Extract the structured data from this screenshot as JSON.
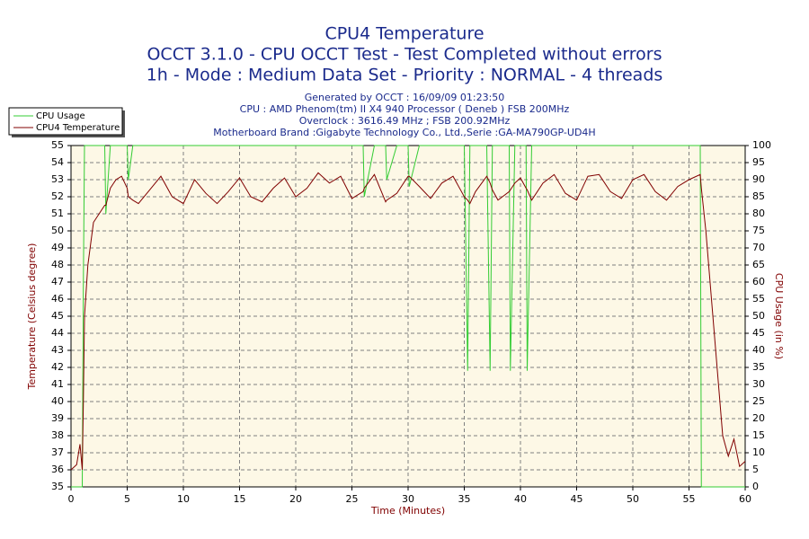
{
  "chart_data": {
    "type": "line",
    "title": "CPU4 Temperature",
    "subtitle": [
      "OCCT 3.1.0 - CPU OCCT Test - Test Completed without errors",
      "1h - Mode : Medium Data Set - Priority : NORMAL - 4 threads"
    ],
    "info": [
      "Generated by OCCT : 16/09/09 01:23:50",
      "CPU : AMD Phenom(tm) II X4 940 Processor ( Deneb ) FSB 200MHz",
      "Overclock : 3616.49 MHz ; FSB 200.92MHz",
      "Motherboard Brand :Gigabyte Technology Co., Ltd.,Serie :GA-MA790GP-UD4H"
    ],
    "x_label": "Time (Minutes)",
    "y_label": "Temperature (Celsius degree)",
    "y2_label": "CPU Usage (in %)",
    "x": [
      0,
      0.5,
      0.8,
      1,
      1.1,
      1.2,
      1.5,
      2,
      2.5,
      3,
      3.1,
      3.5,
      4,
      4.5,
      5,
      5.1,
      5.5,
      6,
      7,
      8,
      9,
      10,
      11,
      12,
      13,
      14,
      15,
      16,
      17,
      18,
      19,
      20,
      21,
      22,
      23,
      24,
      25,
      26,
      26.1,
      27,
      28,
      28.1,
      29,
      30,
      30.1,
      31,
      32,
      33,
      34,
      35,
      35.3,
      35.5,
      36,
      37,
      37.3,
      37.5,
      38,
      39,
      39.1,
      39.5,
      40,
      40.5,
      40.6,
      41,
      42,
      43,
      44,
      45,
      46,
      47,
      48,
      49,
      50,
      51,
      52,
      53,
      54,
      55,
      56,
      56.1,
      56.5,
      57,
      57.5,
      58,
      58.5,
      59,
      59.5,
      60
    ],
    "series": [
      {
        "name": "CPU Usage",
        "color": "#33cc33",
        "axis": "y2",
        "values": [
          0,
          0,
          0,
          0,
          60,
          100,
          100,
          100,
          100,
          100,
          80,
          100,
          100,
          100,
          100,
          90,
          100,
          100,
          100,
          100,
          100,
          100,
          100,
          100,
          100,
          100,
          100,
          100,
          100,
          100,
          100,
          100,
          100,
          100,
          100,
          100,
          100,
          100,
          85,
          100,
          100,
          90,
          100,
          100,
          88,
          100,
          100,
          100,
          100,
          100,
          34,
          100,
          100,
          100,
          34,
          100,
          100,
          100,
          34,
          100,
          100,
          100,
          34,
          100,
          100,
          100,
          100,
          100,
          100,
          100,
          100,
          100,
          100,
          100,
          100,
          100,
          100,
          100,
          100,
          0,
          0,
          0,
          0,
          0,
          0,
          0,
          0,
          0
        ]
      },
      {
        "name": "CPU4 Temperature",
        "color": "#800000",
        "values": [
          36,
          36.3,
          37.5,
          36,
          40,
          45,
          48,
          50.5,
          51,
          51.5,
          51.5,
          52.5,
          53,
          53.2,
          52.5,
          52,
          51.8,
          51.6,
          52.4,
          53.2,
          52,
          51.6,
          53,
          52.2,
          51.6,
          52.3,
          53.1,
          52,
          51.7,
          52.5,
          53.1,
          52,
          52.5,
          53.4,
          52.8,
          53.2,
          51.9,
          52.3,
          52.5,
          53.3,
          51.7,
          51.8,
          52.2,
          53.2,
          53.2,
          52.6,
          51.9,
          52.8,
          53.2,
          52,
          51.8,
          51.6,
          52.3,
          53.2,
          52.8,
          52.4,
          51.8,
          52.3,
          52.4,
          52.8,
          53.1,
          52.5,
          52.4,
          51.8,
          52.8,
          53.3,
          52.2,
          51.8,
          53.2,
          53.3,
          52.3,
          51.9,
          53,
          53.3,
          52.3,
          51.8,
          52.6,
          53,
          53.3,
          52.5,
          50,
          46,
          42,
          38,
          36.8,
          37.8,
          36.2,
          36.5
        ]
      }
    ],
    "xlim": [
      0,
      60
    ],
    "xticks": [
      0,
      5,
      10,
      15,
      20,
      25,
      30,
      35,
      40,
      45,
      50,
      55,
      60
    ],
    "ylim": [
      35,
      55
    ],
    "yticks": [
      35,
      36,
      37,
      38,
      39,
      40,
      41,
      42,
      43,
      44,
      45,
      46,
      47,
      48,
      49,
      50,
      51,
      52,
      53,
      54,
      55
    ],
    "y2lim": [
      0,
      100
    ],
    "y2ticks": [
      0,
      5,
      10,
      15,
      20,
      25,
      30,
      35,
      40,
      45,
      50,
      55,
      60,
      65,
      70,
      75,
      80,
      85,
      90,
      95,
      100
    ],
    "grid": true,
    "legend": "top-left"
  }
}
